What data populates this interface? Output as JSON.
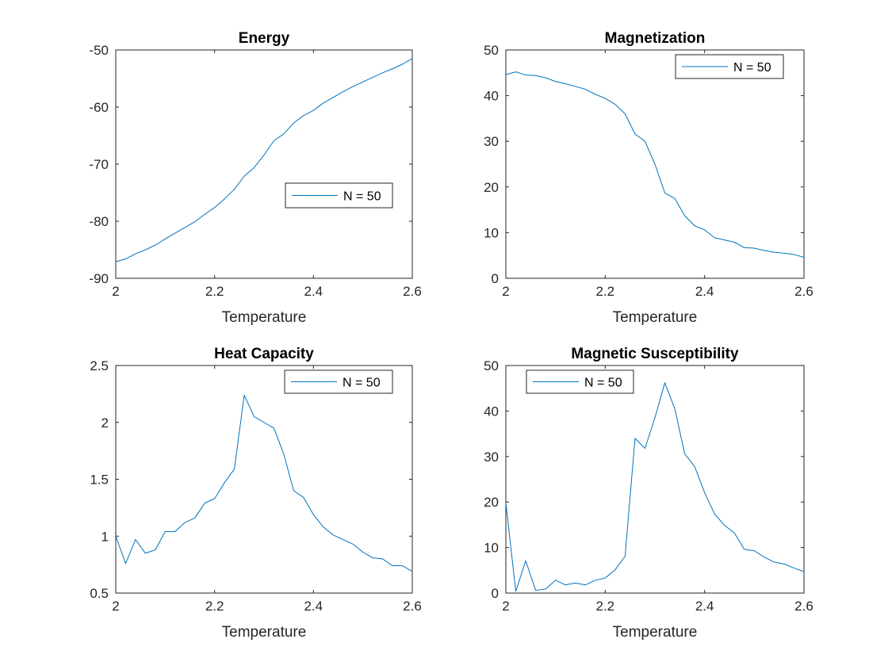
{
  "chart_data": [
    {
      "type": "line",
      "title": "Energy",
      "xlabel": "Temperature",
      "ylabel": "",
      "xlim": [
        2,
        2.6
      ],
      "ylim": [
        -90,
        -50
      ],
      "xticks": [
        2,
        2.2,
        2.4,
        2.6
      ],
      "xtick_labels": [
        "2",
        "2.2",
        "2.4",
        "2.6"
      ],
      "yticks": [
        -90,
        -80,
        -70,
        -60,
        -50
      ],
      "ytick_labels": [
        "-90",
        "-80",
        "-70",
        "-60",
        "-50"
      ],
      "grid": false,
      "legend_position": "middle-right",
      "color": "#0072BD",
      "series": [
        {
          "name": "N = 50",
          "x": [
            2.0,
            2.02,
            2.04,
            2.06,
            2.08,
            2.1,
            2.12,
            2.14,
            2.16,
            2.18,
            2.2,
            2.22,
            2.24,
            2.26,
            2.28,
            2.3,
            2.32,
            2.34,
            2.36,
            2.38,
            2.4,
            2.42,
            2.44,
            2.46,
            2.48,
            2.5,
            2.52,
            2.54,
            2.56,
            2.58,
            2.6
          ],
          "y": [
            -87.1,
            -86.6,
            -85.7,
            -85.0,
            -84.2,
            -83.1,
            -82.1,
            -81.1,
            -80.1,
            -78.8,
            -77.6,
            -76.1,
            -74.4,
            -72.1,
            -70.6,
            -68.4,
            -65.9,
            -64.7,
            -62.8,
            -61.5,
            -60.6,
            -59.3,
            -58.3,
            -57.3,
            -56.4,
            -55.6,
            -54.8,
            -54.0,
            -53.3,
            -52.5,
            -51.5
          ]
        }
      ]
    },
    {
      "type": "line",
      "title": "Magnetization",
      "xlabel": "Temperature",
      "ylabel": "",
      "xlim": [
        2,
        2.6
      ],
      "ylim": [
        0,
        50
      ],
      "xticks": [
        2,
        2.2,
        2.4,
        2.6
      ],
      "xtick_labels": [
        "2",
        "2.2",
        "2.4",
        "2.6"
      ],
      "yticks": [
        0,
        10,
        20,
        30,
        40,
        50
      ],
      "ytick_labels": [
        "0",
        "10",
        "20",
        "30",
        "40",
        "50"
      ],
      "grid": false,
      "legend_position": "top-right",
      "color": "#0072BD",
      "series": [
        {
          "name": "N = 50",
          "x": [
            2.0,
            2.02,
            2.04,
            2.06,
            2.08,
            2.1,
            2.12,
            2.14,
            2.16,
            2.18,
            2.2,
            2.22,
            2.24,
            2.26,
            2.28,
            2.3,
            2.32,
            2.34,
            2.36,
            2.38,
            2.4,
            2.42,
            2.44,
            2.46,
            2.48,
            2.5,
            2.52,
            2.54,
            2.56,
            2.58,
            2.6
          ],
          "y": [
            44.6,
            45.2,
            44.5,
            44.4,
            43.9,
            43.1,
            42.6,
            42.0,
            41.4,
            40.3,
            39.4,
            38.1,
            36.0,
            31.6,
            30.0,
            25.0,
            18.7,
            17.5,
            13.7,
            11.5,
            10.6,
            8.9,
            8.4,
            7.9,
            6.7,
            6.6,
            6.1,
            5.7,
            5.5,
            5.2,
            4.6
          ]
        }
      ]
    },
    {
      "type": "line",
      "title": "Heat Capacity",
      "xlabel": "Temperature",
      "ylabel": "",
      "xlim": [
        2,
        2.6
      ],
      "ylim": [
        0.5,
        2.5
      ],
      "xticks": [
        2,
        2.2,
        2.4,
        2.6
      ],
      "xtick_labels": [
        "2",
        "2.2",
        "2.4",
        "2.6"
      ],
      "yticks": [
        0.5,
        1,
        1.5,
        2,
        2.5
      ],
      "ytick_labels": [
        "0.5",
        "1",
        "1.5",
        "2",
        "2.5"
      ],
      "grid": false,
      "legend_position": "top-right",
      "color": "#0072BD",
      "series": [
        {
          "name": "N = 50",
          "x": [
            2.0,
            2.02,
            2.04,
            2.06,
            2.08,
            2.1,
            2.12,
            2.14,
            2.16,
            2.18,
            2.2,
            2.22,
            2.24,
            2.26,
            2.28,
            2.3,
            2.32,
            2.34,
            2.36,
            2.38,
            2.4,
            2.42,
            2.44,
            2.46,
            2.48,
            2.5,
            2.52,
            2.54,
            2.56,
            2.58,
            2.6
          ],
          "y": [
            1.0,
            0.76,
            0.97,
            0.85,
            0.88,
            1.04,
            1.04,
            1.12,
            1.16,
            1.29,
            1.33,
            1.47,
            1.59,
            2.24,
            2.05,
            2.0,
            1.95,
            1.72,
            1.4,
            1.34,
            1.19,
            1.08,
            1.01,
            0.97,
            0.93,
            0.86,
            0.81,
            0.8,
            0.74,
            0.74,
            0.69
          ]
        }
      ]
    },
    {
      "type": "line",
      "title": "Magnetic Susceptibility",
      "xlabel": "Temperature",
      "ylabel": "",
      "xlim": [
        2,
        2.6
      ],
      "ylim": [
        0,
        50
      ],
      "xticks": [
        2,
        2.2,
        2.4,
        2.6
      ],
      "xtick_labels": [
        "2",
        "2.2",
        "2.4",
        "2.6"
      ],
      "yticks": [
        0,
        10,
        20,
        30,
        40,
        50
      ],
      "ytick_labels": [
        "0",
        "10",
        "20",
        "30",
        "40",
        "50"
      ],
      "grid": false,
      "legend_position": "top-left",
      "color": "#0072BD",
      "series": [
        {
          "name": "N = 50",
          "x": [
            2.0,
            2.02,
            2.04,
            2.06,
            2.08,
            2.1,
            2.12,
            2.14,
            2.16,
            2.18,
            2.2,
            2.22,
            2.24,
            2.26,
            2.28,
            2.3,
            2.32,
            2.34,
            2.36,
            2.38,
            2.4,
            2.42,
            2.44,
            2.46,
            2.48,
            2.5,
            2.52,
            2.54,
            2.56,
            2.58,
            2.6
          ],
          "y": [
            19.8,
            0.4,
            7.1,
            0.6,
            0.9,
            2.8,
            1.8,
            2.2,
            1.8,
            2.8,
            3.3,
            5.1,
            8.1,
            34.0,
            31.8,
            38.5,
            46.2,
            40.5,
            30.6,
            27.8,
            22.1,
            17.4,
            14.9,
            13.2,
            9.6,
            9.3,
            7.9,
            6.8,
            6.4,
            5.5,
            4.7
          ]
        }
      ]
    }
  ]
}
